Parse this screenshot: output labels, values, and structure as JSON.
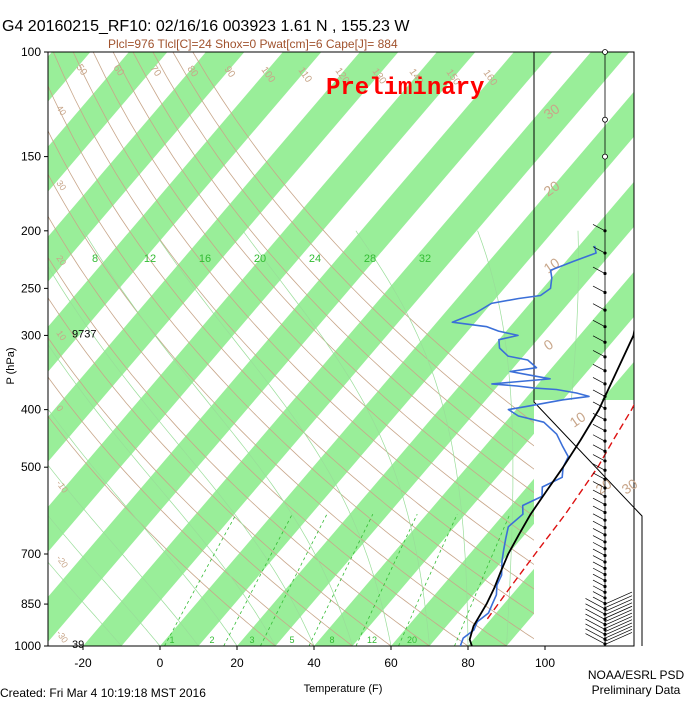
{
  "header": {
    "title": "G4 20160215_RF10: 02/16/16 003923    1.61 N , 155.23 W",
    "subtitle": "Plcl=976 Tlcl[C]=24 Shox=0 Pwat[cm]=6 Cape[J]= 884",
    "stamp": "Preliminary"
  },
  "footer": {
    "created": "Created: Fri Mar  4 10:19:18 MST 2016",
    "credit_line1": "NOAA/ESRL PSD",
    "credit_line2": "Preliminary Data"
  },
  "colors": {
    "temperature": "#000000",
    "parcel": "#dd1111",
    "dewpoint": "#3b6fd8",
    "isotherm_band": "#99ee99",
    "dry_adiabat": "#c8a68a",
    "moist_adiabat": "#99dd99",
    "mixing_ratio": "#33bb33",
    "title_sub": "#a0522d",
    "stamp": "#ff0000"
  },
  "chart_data": {
    "type": "line",
    "title": "G4 20160215_RF10: 02/16/16 003923    1.61 N , 155.23 W",
    "xlabel": "Temperature (F)",
    "ylabel": "P (hPa)",
    "x_ticks": [
      "-20",
      "0",
      "20",
      "40",
      "60",
      "80",
      "100"
    ],
    "y_ticks": [
      {
        "p": 100,
        "label": "100"
      },
      {
        "p": 150,
        "label": "150"
      },
      {
        "p": 200,
        "label": "200"
      },
      {
        "p": 250,
        "label": "250"
      },
      {
        "p": 300,
        "label": "300"
      },
      {
        "p": 400,
        "label": "400"
      },
      {
        "p": 500,
        "label": "500"
      },
      {
        "p": 700,
        "label": "700"
      },
      {
        "p": 850,
        "label": "850"
      },
      {
        "p": 1000,
        "label": "1000"
      }
    ],
    "ylim": [
      1000,
      100
    ],
    "y_scale": "log",
    "height_labels": [
      {
        "p": 300,
        "label": "9737"
      },
      {
        "p": 1000,
        "label": "39"
      }
    ],
    "mixing_ratio_labels": [
      "8",
      "12",
      "16",
      "20",
      "24",
      "28",
      "32"
    ],
    "mixing_ratio_labels_bottom": [
      "1",
      "2",
      "3",
      "5",
      "8",
      "12",
      "20"
    ],
    "dry_adiabat_labels": [
      "50",
      "60",
      "70",
      "80",
      "90",
      "100",
      "110",
      "120",
      "130",
      "140",
      "150",
      "160"
    ],
    "moist_adiabat_labels": [
      "40",
      "30",
      "20",
      "10",
      "0",
      "-10",
      "-20",
      "-30"
    ],
    "right_isotherm_labels": [
      "30",
      "20",
      "10",
      "0",
      "10",
      "20",
      "30"
    ],
    "series": [
      {
        "key": "temperature",
        "points": [
          [
            81,
            1000
          ],
          [
            79,
            975
          ],
          [
            78,
            950
          ],
          [
            77,
            925
          ],
          [
            76.5,
            900
          ],
          [
            75.5,
            850
          ],
          [
            74,
            800
          ],
          [
            72,
            750
          ],
          [
            70,
            700
          ],
          [
            68.5,
            650
          ],
          [
            67,
            600
          ],
          [
            66,
            550
          ],
          [
            65,
            500
          ],
          [
            63.5,
            450
          ],
          [
            61.5,
            400
          ],
          [
            58,
            350
          ],
          [
            54,
            300
          ],
          [
            50,
            275
          ],
          [
            45,
            250
          ],
          [
            41,
            225
          ],
          [
            37,
            195
          ]
        ]
      },
      {
        "key": "parcel",
        "points": [
          [
            79,
            900
          ],
          [
            78,
            800
          ],
          [
            77,
            700
          ],
          [
            76,
            600
          ],
          [
            74,
            500
          ],
          [
            72,
            450
          ],
          [
            70,
            400
          ],
          [
            67,
            350
          ],
          [
            63,
            300
          ],
          [
            58,
            250
          ],
          [
            53,
            220
          ],
          [
            48,
            200
          ],
          [
            40,
            190
          ]
        ]
      },
      {
        "key": "dewpoint",
        "points": [
          [
            78,
            1000
          ],
          [
            77,
            970
          ],
          [
            78,
            940
          ],
          [
            77,
            910
          ],
          [
            78,
            880
          ],
          [
            77,
            850
          ],
          [
            76,
            820
          ],
          [
            74,
            790
          ],
          [
            73,
            760
          ],
          [
            70,
            720
          ],
          [
            68,
            690
          ],
          [
            66,
            660
          ],
          [
            64,
            630
          ],
          [
            65,
            600
          ],
          [
            63,
            580
          ],
          [
            66,
            560
          ],
          [
            64,
            540
          ],
          [
            67,
            520
          ],
          [
            65,
            500
          ],
          [
            64,
            480
          ],
          [
            60,
            460
          ],
          [
            56,
            440
          ],
          [
            50,
            420
          ],
          [
            42,
            410
          ],
          [
            38,
            400
          ],
          [
            42,
            395
          ],
          [
            50,
            385
          ],
          [
            56,
            380
          ],
          [
            52,
            375
          ],
          [
            46,
            370
          ],
          [
            40,
            368
          ],
          [
            35,
            365
          ],
          [
            28,
            362
          ],
          [
            36,
            358
          ],
          [
            42,
            355
          ],
          [
            36,
            350
          ],
          [
            30,
            345
          ],
          [
            36,
            340
          ],
          [
            32,
            330
          ],
          [
            26,
            325
          ],
          [
            22,
            315
          ],
          [
            20,
            305
          ],
          [
            24,
            300
          ],
          [
            18,
            295
          ],
          [
            14,
            290
          ],
          [
            4,
            285
          ],
          [
            8,
            275
          ],
          [
            10,
            265
          ],
          [
            16,
            260
          ],
          [
            21,
            257
          ],
          [
            22,
            250
          ],
          [
            20,
            240
          ],
          [
            18,
            233
          ],
          [
            22,
            225
          ],
          [
            26,
            218
          ],
          [
            24,
            212
          ]
        ]
      }
    ]
  }
}
